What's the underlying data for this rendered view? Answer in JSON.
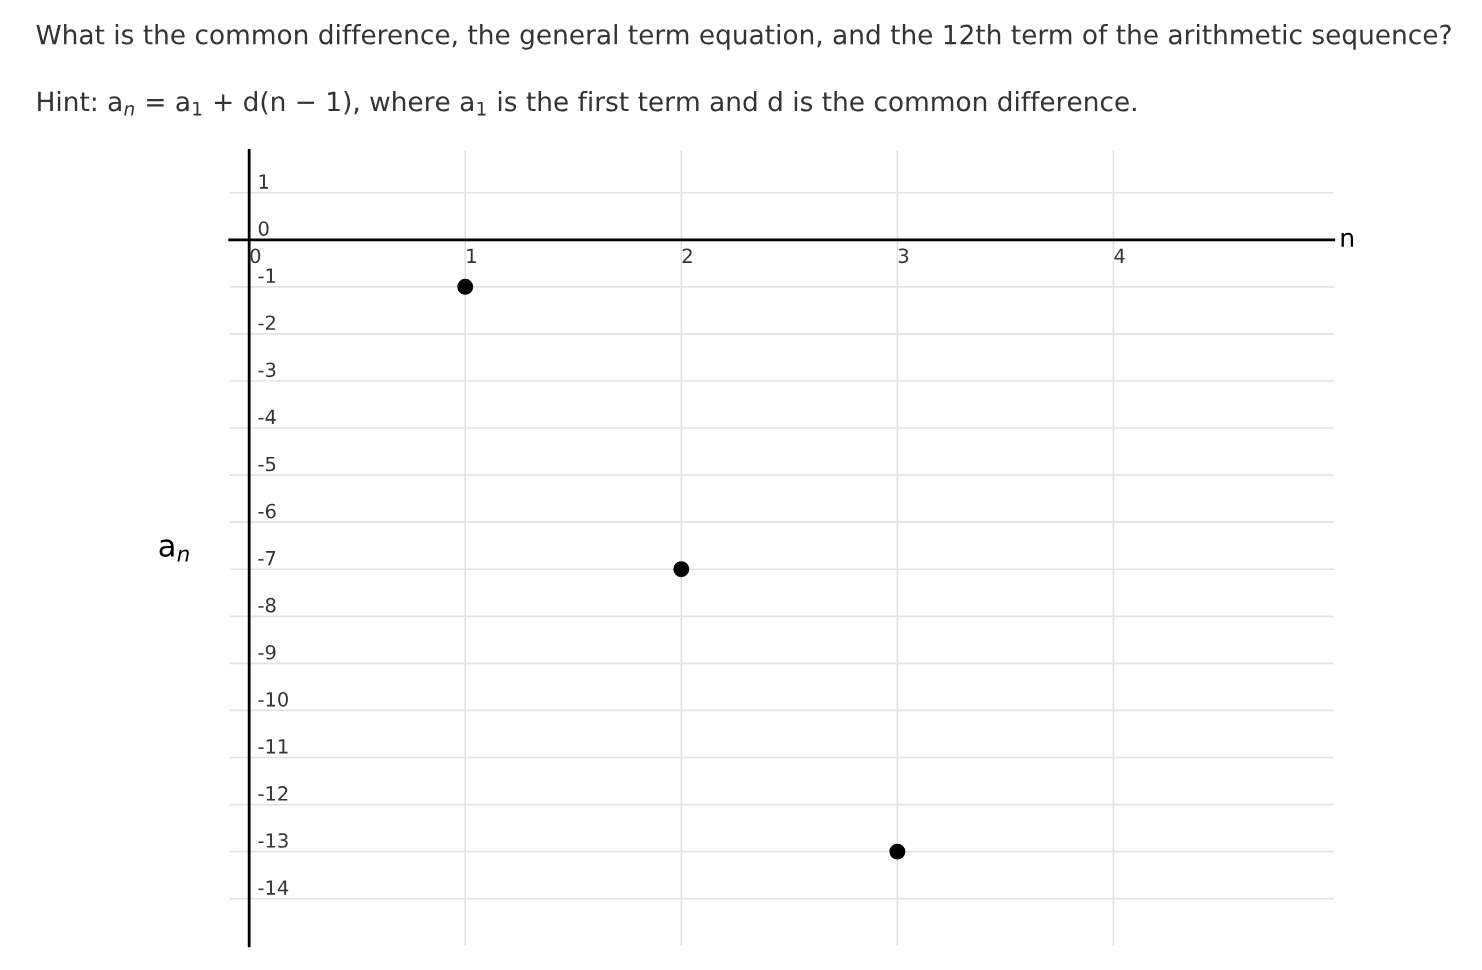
{
  "chart_data": {
    "type": "scatter",
    "title": "What is the common difference, the general term equation, and the 12th term of the arithmetic sequence?",
    "subtitle": "Hint: a$_{n}$ = a$_{1}$ + d(n − 1), where a$_{1}$ is the first term and d is the common difference.",
    "xlabel": "n",
    "ylabel": "a$_{n}$",
    "x": [
      1,
      2,
      3
    ],
    "series": [
      {
        "color": "#000000",
        "values": [
          -1,
          -7,
          -13
        ]
      }
    ],
    "xlim": [
      -0.09,
      5.02
    ],
    "ylim": [
      -15.0,
      1.9
    ],
    "xticks": [
      0,
      1,
      2,
      3,
      4
    ],
    "yticks": [
      1,
      0,
      -1,
      -2,
      -3,
      -4,
      -5,
      -6,
      -7,
      -8,
      -9,
      -10,
      -11,
      -12,
      -13,
      -14
    ],
    "grid": true,
    "marker": "circle"
  }
}
